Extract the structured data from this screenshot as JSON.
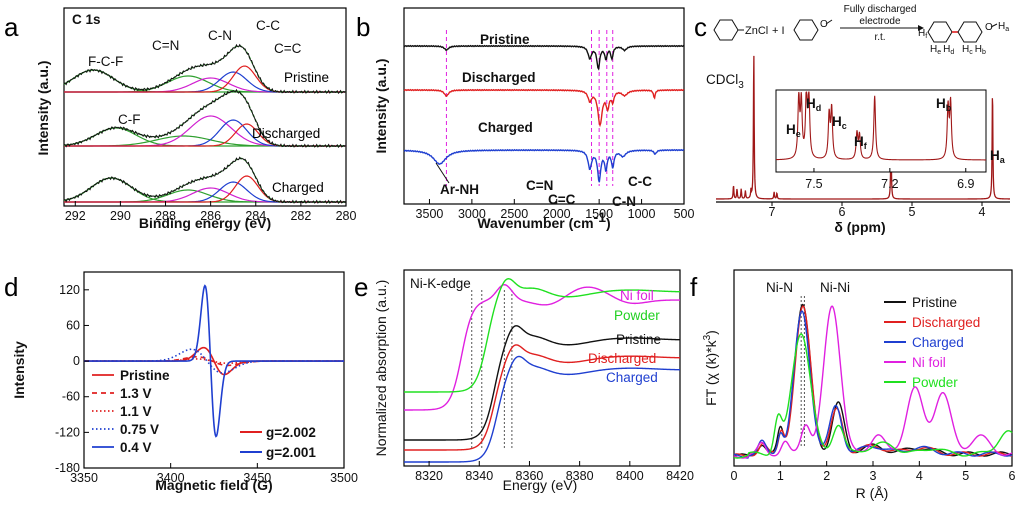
{
  "chart_data": [
    {
      "id": "a",
      "panel_label": "a",
      "type": "line",
      "title": "C 1s",
      "xlabel": "Binding energy (eV)",
      "ylabel": "Intensity (a.u.)",
      "xlim": [
        292.5,
        280
      ],
      "xticks": [
        292,
        290,
        288,
        286,
        284,
        282,
        280
      ],
      "series": [
        {
          "name": "Pristine",
          "color": "#111111",
          "offset": 2.4
        },
        {
          "name": "Discharged",
          "color": "#111111",
          "offset": 1.2
        },
        {
          "name": "Charged",
          "color": "#111111",
          "offset": 0
        }
      ],
      "components": [
        {
          "name": "F-C-F",
          "center": 291.2,
          "color": "#2fa02f"
        },
        {
          "name": "C-F",
          "center": 290.2,
          "color": "#2fa02f"
        },
        {
          "name": "C=N",
          "center": 287.0,
          "color": "#2fa02f"
        },
        {
          "name": "C-N",
          "center": 286.0,
          "color": "#d020d0"
        },
        {
          "name": "C-C",
          "center": 285.0,
          "color": "#1f3fd0"
        },
        {
          "name": "C=C",
          "center": 284.5,
          "color": "#e02020"
        }
      ],
      "annotations": [
        "F-C-F",
        "C=N",
        "C-N",
        "C-C",
        "C=C",
        "C-F"
      ],
      "curve_labels": [
        "Pristine",
        "Discharged",
        "Charged"
      ]
    },
    {
      "id": "b",
      "panel_label": "b",
      "type": "line",
      "xlabel_main": "Wavenumber",
      "xlabel_unit": "(cm",
      "xlabel_sup": "-1",
      "xlabel_close": ")",
      "ylabel": "Intensity (a.u.)",
      "xlim": [
        3800,
        500
      ],
      "xticks": [
        3500,
        3000,
        2500,
        2000,
        1500,
        1000,
        500
      ],
      "series": [
        {
          "name": "Pristine",
          "color": "#111111"
        },
        {
          "name": "Discharged",
          "color": "#e02020"
        },
        {
          "name": "Charged",
          "color": "#1f3fd0"
        }
      ],
      "annotations": [
        "Ar-NH",
        "C=N",
        "C=C",
        "C-N",
        "C-C"
      ],
      "dashed_lines_cm": [
        3300,
        1590,
        1500,
        1410,
        1340
      ]
    },
    {
      "id": "c",
      "panel_label": "c",
      "type": "line",
      "xlabel": "δ (ppm)",
      "xlim": [
        7.8,
        3.6
      ],
      "xticks": [
        7,
        6,
        5,
        4
      ],
      "solvent_label": "CDCl",
      "solvent_sub": "3",
      "peaks_ppm": [
        7.26,
        7.52,
        7.46,
        7.41,
        7.33,
        7.28,
        6.93,
        3.85
      ],
      "inset": {
        "xlim": [
          7.65,
          6.82
        ],
        "xticks": [
          7.5,
          7.2,
          6.9
        ]
      },
      "peak_labels": [
        {
          "main": "H",
          "sub": "e"
        },
        {
          "main": "H",
          "sub": "d"
        },
        {
          "main": "H",
          "sub": "c"
        },
        {
          "main": "H",
          "sub": "f"
        },
        {
          "main": "H",
          "sub": "b"
        },
        {
          "main": "H",
          "sub": "a"
        }
      ],
      "scheme": {
        "reagent_1": "ZnCl",
        "plus": "+ I",
        "ome": "O",
        "arrow_top_1": "Fully discharged",
        "arrow_top_2": "electrode",
        "arrow_bottom": "r.t.",
        "h_labels": [
          "H",
          "f",
          "H",
          "e",
          "H",
          "d",
          "H",
          "c",
          "H",
          "b",
          "H",
          "a"
        ]
      }
    },
    {
      "id": "d",
      "panel_label": "d",
      "type": "line",
      "xlabel": "Magnetic field (G)",
      "ylabel": "Intensity",
      "xlim": [
        3350,
        3500
      ],
      "ylim": [
        -180,
        150
      ],
      "xticks": [
        3350,
        3400,
        3450,
        3500
      ],
      "yticks": [
        120,
        60,
        0,
        -60,
        -120,
        -180
      ],
      "series": [
        {
          "name": "Pristine",
          "color": "#e02020",
          "dash": "solid",
          "amp": 25,
          "center": 3425
        },
        {
          "name": "1.3 V",
          "color": "#e02020",
          "dash": "dash",
          "amp": 8,
          "center": 3424
        },
        {
          "name": "1.1 V",
          "color": "#e02020",
          "dash": "dot",
          "amp": 4,
          "center": 3424
        },
        {
          "name": "0.75 V",
          "color": "#1f3fd0",
          "dash": "dot",
          "amp": 22,
          "center": 3421
        },
        {
          "name": "0.4 V",
          "color": "#1f3fd0",
          "dash": "solid",
          "amp": 140,
          "center": 3423
        }
      ],
      "g_labels": [
        {
          "text": "g=2.002",
          "color": "#e02020"
        },
        {
          "text": "g=2.001",
          "color": "#1f3fd0"
        }
      ]
    },
    {
      "id": "e",
      "panel_label": "e",
      "type": "line",
      "title": "Ni-K-edge",
      "xlabel": "Energy (eV)",
      "ylabel": "Normalized absorption (a.u.)",
      "xlim": [
        8310,
        8420
      ],
      "xticks": [
        8320,
        8340,
        8360,
        8380,
        8400,
        8420
      ],
      "series": [
        {
          "name": "Ni foil",
          "color": "#e020e0"
        },
        {
          "name": "Powder",
          "color": "#20e020"
        },
        {
          "name": "Pristine",
          "color": "#111111"
        },
        {
          "name": "Discharged",
          "color": "#e02020"
        },
        {
          "name": "Charged",
          "color": "#1f3fd0"
        }
      ],
      "edge_lines_ev": [
        8337,
        8341,
        8350,
        8353
      ]
    },
    {
      "id": "f",
      "panel_label": "f",
      "type": "line",
      "xlabel": "R (Å)",
      "ylabel_main": "FT (χ (k)*k",
      "ylabel_sup": "3",
      "ylabel_close": ")",
      "xlim": [
        0,
        6
      ],
      "xticks": [
        0,
        1,
        2,
        3,
        4,
        5,
        6
      ],
      "series": [
        {
          "name": "Pristine",
          "color": "#111111"
        },
        {
          "name": "Discharged",
          "color": "#e02020"
        },
        {
          "name": "Charged",
          "color": "#1f3fd0"
        },
        {
          "name": "Ni foil",
          "color": "#e020e0"
        },
        {
          "name": "Powder",
          "color": "#20e020"
        }
      ],
      "annotations": [
        "Ni-N",
        "Ni-Ni"
      ]
    }
  ]
}
